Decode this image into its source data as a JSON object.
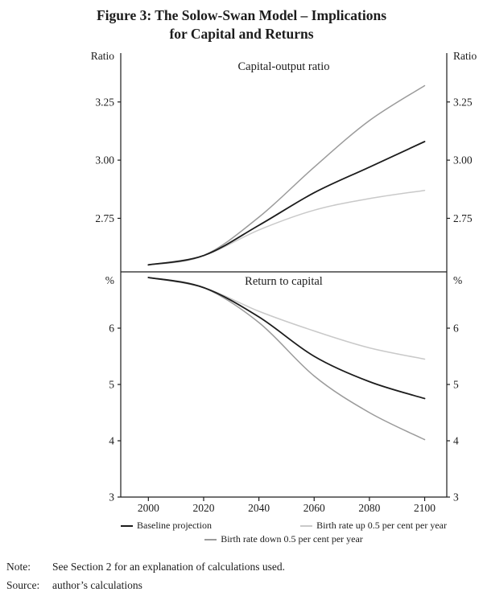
{
  "figure": {
    "title_line1": "Figure 3: The Solow-Swan Model – Implications",
    "title_line2": "for Capital and Returns"
  },
  "colors": {
    "baseline": "#1c1c1c",
    "birth_up": "#c9c9c9",
    "birth_down": "#9b9b9b",
    "axis": "#1c1c1c"
  },
  "chart_data": [
    {
      "type": "line",
      "title": "Capital-output ratio",
      "ylabel_left": "Ratio",
      "ylabel_right": "Ratio",
      "x": [
        2000,
        2020,
        2040,
        2060,
        2080,
        2100
      ],
      "xlim": [
        1990,
        2108
      ],
      "ylim": [
        2.52,
        3.46
      ],
      "yticks": [
        2.75,
        3.0,
        3.25
      ],
      "ytick_labels": [
        "2.75",
        "3.00",
        "3.25"
      ],
      "grid": false,
      "series": [
        {
          "name": "Baseline projection",
          "color_key": "baseline",
          "values": [
            2.55,
            2.59,
            2.72,
            2.86,
            2.97,
            3.08
          ]
        },
        {
          "name": "Birth rate up 0.5 per cent per year",
          "color_key": "birth_up",
          "values": [
            2.55,
            2.59,
            2.7,
            2.785,
            2.835,
            2.87
          ]
        },
        {
          "name": "Birth rate down 0.5 per cent per year",
          "color_key": "birth_down",
          "values": [
            2.55,
            2.59,
            2.755,
            2.97,
            3.17,
            3.32
          ]
        }
      ]
    },
    {
      "type": "line",
      "title": "Return to capital",
      "ylabel_left": "%",
      "ylabel_right": "%",
      "x": [
        2000,
        2020,
        2040,
        2060,
        2080,
        2100
      ],
      "xlim": [
        1990,
        2108
      ],
      "ylim": [
        3,
        7.0
      ],
      "yticks": [
        3,
        4,
        5,
        6
      ],
      "ytick_labels": [
        "3",
        "4",
        "5",
        "6"
      ],
      "grid": false,
      "series": [
        {
          "name": "Baseline projection",
          "color_key": "baseline",
          "values": [
            6.9,
            6.72,
            6.2,
            5.5,
            5.05,
            4.75
          ]
        },
        {
          "name": "Birth rate up 0.5 per cent per year",
          "color_key": "birth_up",
          "values": [
            6.9,
            6.72,
            6.3,
            5.95,
            5.65,
            5.45
          ]
        },
        {
          "name": "Birth rate down 0.5 per cent per year",
          "color_key": "birth_down",
          "values": [
            6.9,
            6.72,
            6.1,
            5.15,
            4.5,
            4.02
          ]
        }
      ]
    }
  ],
  "legend": {
    "items": [
      {
        "label": "Baseline projection",
        "color_key": "baseline"
      },
      {
        "label": "Birth rate up 0.5 per cent per year",
        "color_key": "birth_up"
      },
      {
        "label": "Birth rate down 0.5 per cent per year",
        "color_key": "birth_down"
      }
    ]
  },
  "footer": {
    "note_label": "Note:",
    "note_text": "See Section 2 for an explanation of calculations used.",
    "source_label": "Source:",
    "source_text": "author’s calculations"
  }
}
